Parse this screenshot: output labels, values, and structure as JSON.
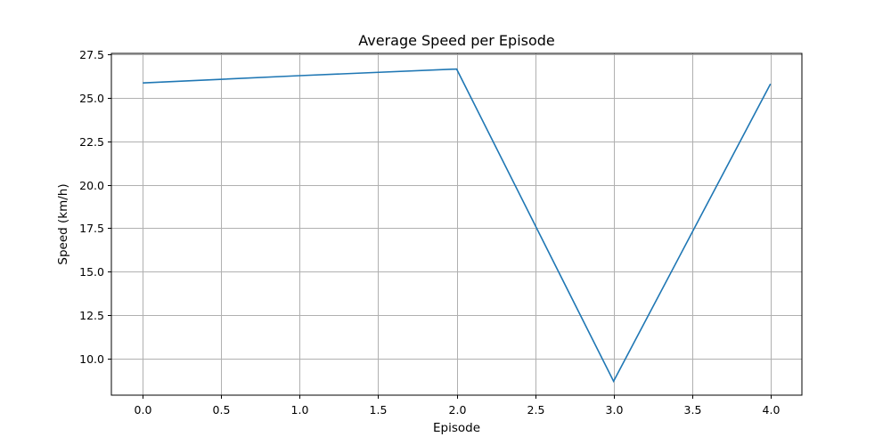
{
  "chart_data": {
    "type": "line",
    "title": "Average Speed per Episode",
    "xlabel": "Episode",
    "ylabel": "Speed (km/h)",
    "x": [
      0,
      1,
      2,
      3,
      4
    ],
    "series": [
      {
        "values": [
          25.85,
          26.27,
          26.65,
          8.7,
          25.8
        ],
        "color": "#1f77b4"
      }
    ],
    "xlim": [
      -0.2,
      4.2
    ],
    "ylim": [
      7.9,
      27.55
    ],
    "xticks": [
      0.0,
      0.5,
      1.0,
      1.5,
      2.0,
      2.5,
      3.0,
      3.5,
      4.0
    ],
    "xtick_labels": [
      "0.0",
      "0.5",
      "1.0",
      "1.5",
      "2.0",
      "2.5",
      "3.0",
      "3.5",
      "4.0"
    ],
    "yticks": [
      10.0,
      12.5,
      15.0,
      17.5,
      20.0,
      22.5,
      25.0,
      27.5
    ],
    "ytick_labels": [
      "10.0",
      "12.5",
      "15.0",
      "17.5",
      "20.0",
      "22.5",
      "25.0",
      "27.5"
    ],
    "grid": true,
    "legend": "none"
  }
}
